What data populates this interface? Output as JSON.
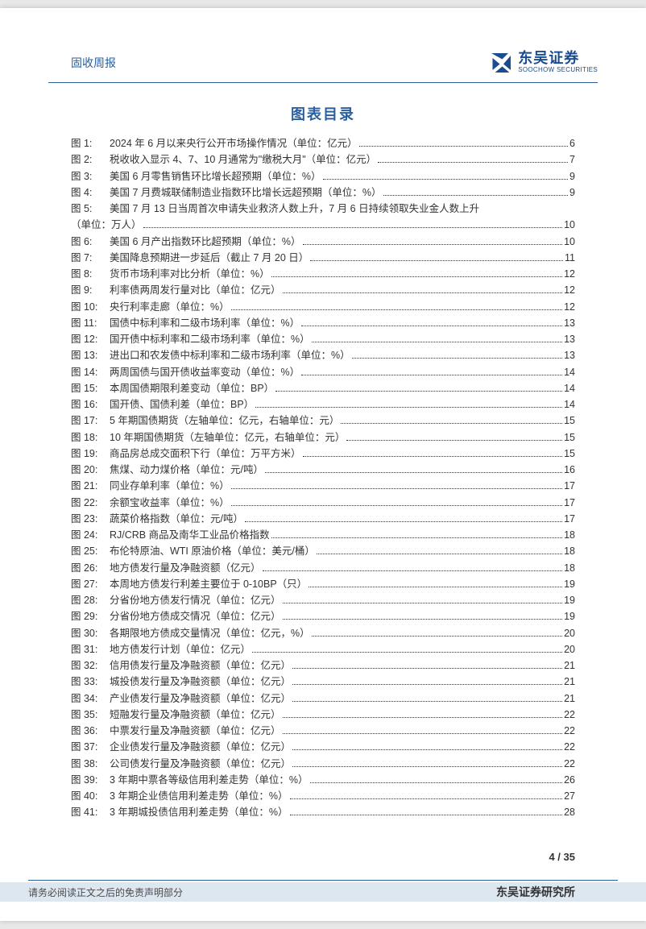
{
  "header": {
    "category": "固收周报",
    "company_cn": "东吴证券",
    "company_en": "SOOCHOW SECURITIES"
  },
  "title": "图表目录",
  "toc_entries": [
    {
      "label": "图 1:",
      "title": "2024 年 6 月以来央行公开市场操作情况（单位：亿元）",
      "page": "6"
    },
    {
      "label": "图 2:",
      "title": "税收收入显示 4、7、10 月通常为\"缴税大月\"（单位：亿元）",
      "page": "7"
    },
    {
      "label": "图 3:",
      "title": "美国 6 月零售销售环比增长超预期（单位：%）",
      "page": "9"
    },
    {
      "label": "图 4:",
      "title": "美国 7 月费城联储制造业指数环比增长远超预期（单位：%）",
      "page": "9"
    },
    {
      "label": "图 5:",
      "title": "美国 7 月 13 日当周首次申请失业救济人数上升，7 月 6 日持续领取失业金人数上升",
      "page": "",
      "continuation": "（单位：万人）",
      "cont_page": "10"
    },
    {
      "label": "图 6:",
      "title": "美国 6 月产出指数环比超预期（单位：%）",
      "page": "10"
    },
    {
      "label": "图 7:",
      "title": "美国降息预期进一步延后（截止 7 月 20 日）",
      "page": "11"
    },
    {
      "label": "图 8:",
      "title": "货币市场利率对比分析（单位：%）",
      "page": "12"
    },
    {
      "label": "图 9:",
      "title": "利率债两周发行量对比（单位：亿元）",
      "page": "12"
    },
    {
      "label": "图 10:",
      "title": "央行利率走廊（单位：%）",
      "page": "12"
    },
    {
      "label": "图 11:",
      "title": "国债中标利率和二级市场利率（单位：%）",
      "page": "13"
    },
    {
      "label": "图 12:",
      "title": "国开债中标利率和二级市场利率（单位：%）",
      "page": "13"
    },
    {
      "label": "图 13:",
      "title": "进出口和农发债中标利率和二级市场利率（单位：%）",
      "page": "13"
    },
    {
      "label": "图 14:",
      "title": "两周国债与国开债收益率变动（单位：%）",
      "page": "14"
    },
    {
      "label": "图 15:",
      "title": "本周国债期限利差变动（单位：BP）",
      "page": "14"
    },
    {
      "label": "图 16:",
      "title": "国开债、国债利差（单位：BP）",
      "page": "14"
    },
    {
      "label": "图 17:",
      "title": "5 年期国债期货（左轴单位：亿元，右轴单位：元）",
      "page": "15"
    },
    {
      "label": "图 18:",
      "title": "10 年期国债期货（左轴单位：亿元，右轴单位：元）",
      "page": "15"
    },
    {
      "label": "图 19:",
      "title": "商品房总成交面积下行（单位：万平方米）",
      "page": "15"
    },
    {
      "label": "图 20:",
      "title": "焦煤、动力煤价格（单位：元/吨）",
      "page": "16"
    },
    {
      "label": "图 21:",
      "title": "同业存单利率（单位：%）",
      "page": "17"
    },
    {
      "label": "图 22:",
      "title": "余额宝收益率（单位：%）",
      "page": "17"
    },
    {
      "label": "图 23:",
      "title": "蔬菜价格指数（单位：元/吨）",
      "page": "17"
    },
    {
      "label": "图 24:",
      "title": "RJ/CRB 商品及南华工业品价格指数",
      "page": "18"
    },
    {
      "label": "图 25:",
      "title": "布伦特原油、WTI 原油价格（单位：美元/桶）",
      "page": "18"
    },
    {
      "label": "图 26:",
      "title": "地方债发行量及净融资额（亿元）",
      "page": "18"
    },
    {
      "label": "图 27:",
      "title": "本周地方债发行利差主要位于 0-10BP（只）",
      "page": "19"
    },
    {
      "label": "图 28:",
      "title": "分省份地方债发行情况（单位：亿元）",
      "page": "19"
    },
    {
      "label": "图 29:",
      "title": "分省份地方债成交情况（单位：亿元）",
      "page": "19"
    },
    {
      "label": "图 30:",
      "title": "各期限地方债成交量情况（单位：亿元，%）",
      "page": "20"
    },
    {
      "label": "图 31:",
      "title": "地方债发行计划（单位：亿元）",
      "page": "20"
    },
    {
      "label": "图 32:",
      "title": "信用债发行量及净融资额（单位：亿元）",
      "page": "21"
    },
    {
      "label": "图 33:",
      "title": "城投债发行量及净融资额（单位：亿元）",
      "page": "21"
    },
    {
      "label": "图 34:",
      "title": "产业债发行量及净融资额（单位：亿元）",
      "page": "21"
    },
    {
      "label": "图 35:",
      "title": "短融发行量及净融资额（单位：亿元）",
      "page": "22"
    },
    {
      "label": "图 36:",
      "title": "中票发行量及净融资额（单位：亿元）",
      "page": "22"
    },
    {
      "label": "图 37:",
      "title": "企业债发行量及净融资额（单位：亿元）",
      "page": "22"
    },
    {
      "label": "图 38:",
      "title": "公司债发行量及净融资额（单位：亿元）",
      "page": "22"
    },
    {
      "label": "图 39:",
      "title": "3 年期中票各等级信用利差走势（单位：%）",
      "page": "26"
    },
    {
      "label": "图 40:",
      "title": "3 年期企业债信用利差走势（单位：%）",
      "page": "27"
    },
    {
      "label": "图 41:",
      "title": "3 年期城投债信用利差走势（单位：%）",
      "page": "28"
    }
  ],
  "page_number": "4 / 35",
  "footer": {
    "disclaimer": "请务必阅读正文之后的免责声明部分",
    "institute": "东吴证券研究所"
  },
  "colors": {
    "brand_blue": "#2a5fa0",
    "logo_blue": "#1a4d8f",
    "footer_band": "#dde7f0",
    "text_dark": "#333333"
  }
}
